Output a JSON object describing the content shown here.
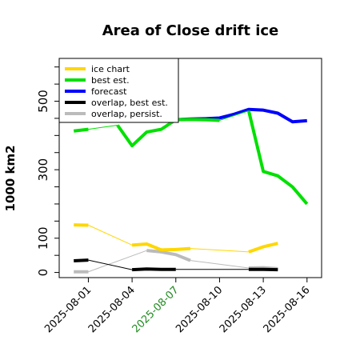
{
  "chart_data": {
    "type": "line",
    "title": "Area of Close drift ice",
    "ylabel": "1000 km2",
    "xlabel": "",
    "xlim": [
      "2025-07-30",
      "2025-08-17"
    ],
    "ylim": [
      -15,
      625
    ],
    "y_ticks": [
      0,
      100,
      300,
      500
    ],
    "x_ticks": [
      "2025-08-01",
      "2025-08-04",
      "2025-08-07",
      "2025-08-10",
      "2025-08-13",
      "2025-08-16"
    ],
    "x_tick_colors": [
      "#000000",
      "#000000",
      "#1f8a1f",
      "#000000",
      "#000000",
      "#000000"
    ],
    "grid": false,
    "legend_position": "top-left",
    "series": [
      {
        "name": "ice chart",
        "color": "#ffd700",
        "x": [
          "2025-07-31",
          "2025-08-01",
          "2025-08-04",
          "2025-08-05",
          "2025-08-06",
          "2025-08-07",
          "2025-08-08",
          "2025-08-12",
          "2025-08-13",
          "2025-08-14"
        ],
        "y": [
          139,
          138,
          80,
          83,
          66,
          67,
          70,
          60,
          75,
          85
        ]
      },
      {
        "name": "best est.",
        "color": "#00e000",
        "x": [
          "2025-07-31",
          "2025-08-01",
          "2025-08-03",
          "2025-08-04",
          "2025-08-05",
          "2025-08-06",
          "2025-08-07",
          "2025-08-08",
          "2025-08-09",
          "2025-08-10",
          "2025-08-12",
          "2025-08-13",
          "2025-08-14",
          "2025-08-15",
          "2025-08-16"
        ],
        "y": [
          413,
          418,
          430,
          370,
          410,
          418,
          446,
          447,
          446,
          444,
          472,
          295,
          282,
          250,
          200
        ]
      },
      {
        "name": "forecast",
        "color": "#0000ff",
        "x": [
          "2025-08-07",
          "2025-08-08",
          "2025-08-09",
          "2025-08-10",
          "2025-08-11",
          "2025-08-12",
          "2025-08-13",
          "2025-08-14",
          "2025-08-15",
          "2025-08-16"
        ],
        "y": [
          446,
          448,
          449,
          451,
          462,
          476,
          474,
          465,
          440,
          443
        ]
      },
      {
        "name": "overlap, best est.",
        "color": "#000000",
        "x": [
          "2025-07-31",
          "2025-08-01",
          "2025-08-04",
          "2025-08-05",
          "2025-08-06",
          "2025-08-07",
          "2025-08-12",
          "2025-08-13",
          "2025-08-14"
        ],
        "y": [
          34,
          36,
          8,
          10,
          9,
          9,
          9,
          9,
          8
        ]
      },
      {
        "name": "overlap, persist.",
        "color": "#bbbbbb",
        "x": [
          "2025-07-31",
          "2025-08-01",
          "2025-08-05",
          "2025-08-06",
          "2025-08-07",
          "2025-08-08",
          "2025-08-12",
          "2025-08-13",
          "2025-08-14"
        ],
        "y": [
          2,
          2,
          64,
          60,
          52,
          35,
          13,
          14,
          11
        ]
      }
    ]
  }
}
